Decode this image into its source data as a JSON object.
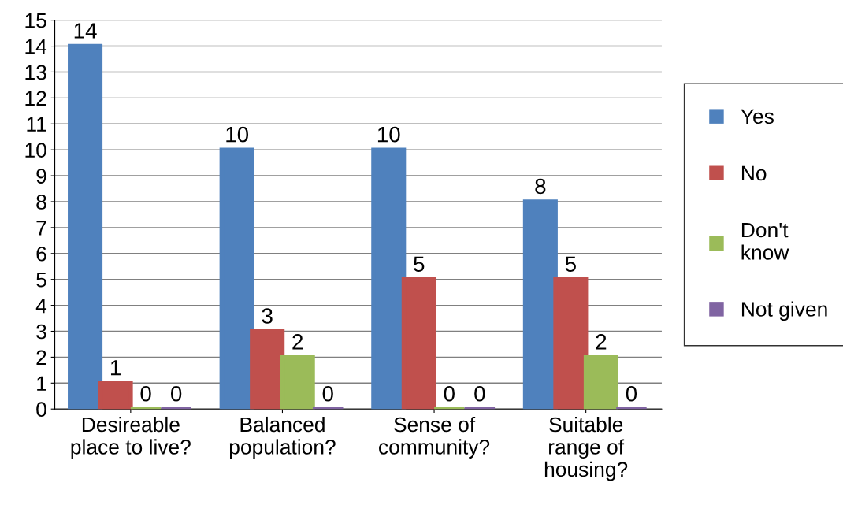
{
  "chart_data": {
    "type": "bar",
    "categories": [
      "Desireable\nplace to live?",
      "Balanced\npopulation?",
      "Sense of\ncommunity?",
      "Suitable\nrange of\nhousing?"
    ],
    "series": [
      {
        "name": "Yes",
        "color": "#4f81bd",
        "values": [
          14,
          10,
          10,
          8
        ]
      },
      {
        "name": "No",
        "color": "#c0504d",
        "values": [
          1,
          3,
          5,
          5
        ]
      },
      {
        "name": "Don't\nknow",
        "color": "#9bbb59",
        "values": [
          0,
          2,
          0,
          2
        ]
      },
      {
        "name": "Not given",
        "color": "#8064a2",
        "values": [
          0,
          0,
          0,
          0
        ]
      }
    ],
    "ylim": [
      0,
      15
    ],
    "yticks": [
      0,
      1,
      2,
      3,
      4,
      5,
      6,
      7,
      8,
      9,
      10,
      11,
      12,
      13,
      14,
      15
    ],
    "grid": "y",
    "legend": "right",
    "data_labels": true
  }
}
